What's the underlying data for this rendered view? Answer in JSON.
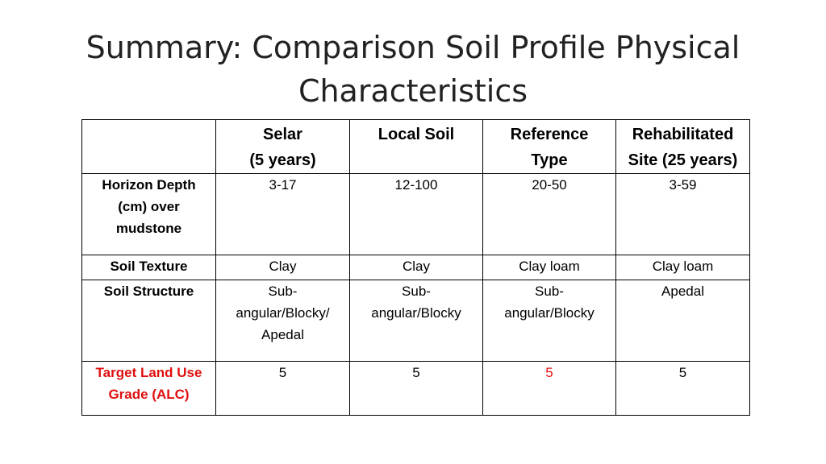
{
  "title": {
    "line1": "Summary: Comparison Soil Profile Physical",
    "line2": "Characteristics"
  },
  "table": {
    "headers": [
      [
        "",
        ""
      ],
      [
        "Selar",
        "(5 years)"
      ],
      [
        "Local Soil",
        ""
      ],
      [
        "Reference",
        "Type"
      ],
      [
        "Rehabilitated",
        "Site (25 years)"
      ]
    ],
    "rows": {
      "depth": {
        "label": [
          "Horizon Depth",
          "(cm) over",
          "mudstone"
        ],
        "cells": [
          "3-17",
          "12-100",
          "20-50",
          "3-59"
        ]
      },
      "texture": {
        "label": [
          "Soil Texture"
        ],
        "cells": [
          "Clay",
          "Clay",
          "Clay loam",
          "Clay loam"
        ]
      },
      "structure": {
        "label": [
          "Soil Structure"
        ],
        "cells": [
          [
            "Sub-",
            "angular/Blocky/",
            "Apedal"
          ],
          [
            "Sub-",
            "angular/Blocky"
          ],
          [
            "Sub-",
            "angular/Blocky"
          ],
          [
            "Apedal"
          ]
        ]
      },
      "grade": {
        "label": [
          "Target Land Use",
          "Grade (ALC)"
        ],
        "cells": [
          "5",
          "5",
          "5",
          "5"
        ]
      }
    },
    "colors": {
      "highlight": "#e01010",
      "border": "#000000"
    }
  }
}
